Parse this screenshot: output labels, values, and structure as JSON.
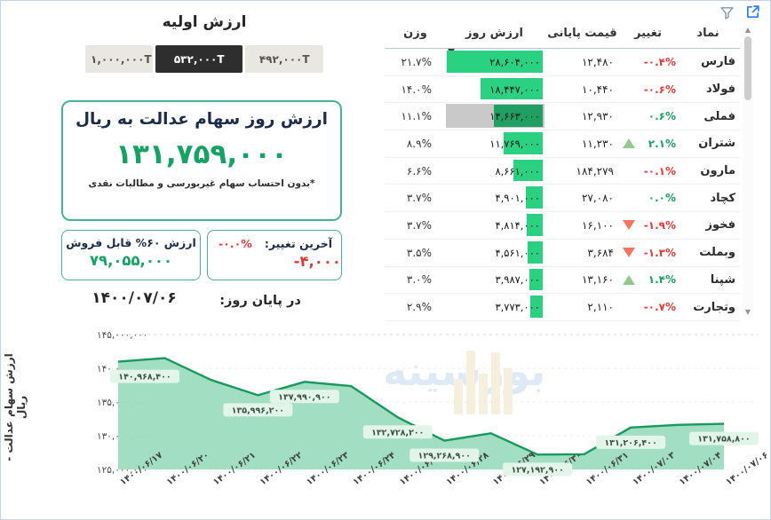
{
  "toolbar": {
    "filter_icon": "funnel",
    "expand_icon": "open-in-new"
  },
  "colors": {
    "accent_green": "#16a263",
    "bar_green": "#2ad180",
    "bar_green_dark": "#1f9f62",
    "highlight_gray": "#c9c9c9",
    "negative_red": "#e23b3b",
    "positive_green": "#1ca05c",
    "box_border_teal": "#49b197",
    "selected_button_bg": "#2e2e2e",
    "area_fill": "#9cdcbf",
    "area_line": "#18995d"
  },
  "initial_value": {
    "title": "ارزش اولیه",
    "options": [
      {
        "label": "۱,۰۰۰,۰۰۰T"
      },
      {
        "label": "۵۳۲,۰۰۰T"
      },
      {
        "label": "۴۹۲,۰۰۰T"
      }
    ],
    "selected_index": 1
  },
  "main_value": {
    "title": "ارزش روز سهام عدالت به ریال",
    "value": "۱۳۱,۷۵۹,۰۰۰",
    "footnote": "*بدون احتساب سهام غیربورسی و مطالبات نقدی"
  },
  "sellable_value": {
    "title": "ارزش ۶۰% قابل فروش",
    "value": "۷۹,۰۵۵,۰۰۰"
  },
  "last_change": {
    "title": "آخرین تغییر:",
    "percent": "-۰.۰%",
    "value": "-۴,۰۰۰"
  },
  "day_end": {
    "label": "در پایان روز:",
    "date": "۱۴۰۰/۰۷/۰۶"
  },
  "table": {
    "headers": {
      "symbol": "نماد",
      "change": "تغییر",
      "close": "قیمت پایانی",
      "value": "ارزش روز",
      "weight": "وزن"
    },
    "sorted_column": "value",
    "max_value": 28604000,
    "rows": [
      {
        "symbol": "فارس",
        "change": "-۰.۴%",
        "arrow": "none",
        "close": "۱۲,۴۸۰",
        "value": "۲۸,۶۰۴,۰۰۰",
        "value_num": 28604000,
        "weight": "۲۱.۷%",
        "highlighted": false
      },
      {
        "symbol": "فولاد",
        "change": "-۰.۶%",
        "arrow": "none",
        "close": "۱۰,۴۴۰",
        "value": "۱۸,۴۴۷,۰۰۰",
        "value_num": 18447000,
        "weight": "۱۴.۰%",
        "highlighted": false
      },
      {
        "symbol": "فملی",
        "change": "۰.۶%",
        "arrow": "none",
        "close": "۱۲,۹۳۰",
        "value": "۱۴,۶۶۳,۰۰۰",
        "value_num": 14663000,
        "weight": "۱۱.۱%",
        "highlighted": true
      },
      {
        "symbol": "شتران",
        "change": "۲.۱%",
        "arrow": "up",
        "close": "۱۱,۲۳۰",
        "value": "۱۱,۷۶۹,۰۰۰",
        "value_num": 11769000,
        "weight": "۸.۹%",
        "highlighted": false
      },
      {
        "symbol": "مارون",
        "change": "-۰.۱%",
        "arrow": "none",
        "close": "۱۸۴,۲۷۹",
        "value": "۸,۶۶۱,۰۰۰",
        "value_num": 8661000,
        "weight": "۶.۶%",
        "highlighted": false
      },
      {
        "symbol": "کچاد",
        "change": "۰.۰%",
        "arrow": "none",
        "close": "۲۷,۰۸۰",
        "value": "۴,۹۰۱,۰۰۰",
        "value_num": 4901000,
        "weight": "۳.۷%",
        "highlighted": false
      },
      {
        "symbol": "فخوز",
        "change": "-۱.۹%",
        "arrow": "down",
        "close": "۱۶,۱۰۰",
        "value": "۴,۸۱۴,۰۰۰",
        "value_num": 4814000,
        "weight": "۳.۷%",
        "highlighted": false
      },
      {
        "symbol": "وبملت",
        "change": "-۱.۳%",
        "arrow": "down",
        "close": "۳,۶۸۴",
        "value": "۴,۵۶۱,۰۰۰",
        "value_num": 4561000,
        "weight": "۳.۵%",
        "highlighted": false
      },
      {
        "symbol": "شپنا",
        "change": "۱.۴%",
        "arrow": "up",
        "close": "۱۳,۱۶۰",
        "value": "۳,۹۸۷,۰۰۰",
        "value_num": 3987000,
        "weight": "۳.۰%",
        "highlighted": false
      },
      {
        "symbol": "وتجارت",
        "change": "-۰.۷%",
        "arrow": "none",
        "close": "۲,۱۱۰",
        "value": "۳,۷۷۳,۰۰۰",
        "value_num": 3773000,
        "weight": "۲.۹%",
        "highlighted": false
      }
    ]
  },
  "watermark": {
    "text": "بورسینه"
  },
  "chart_data": {
    "type": "area",
    "title": "",
    "xlabel": "",
    "ylabel": "ارزش سهام عدالت - ریال",
    "ylim": [
      125000000,
      145000000
    ],
    "grid": "dashed-horizontal",
    "legend": "none",
    "x": [
      "۱۴۰۰/۰۶/۱۷",
      "۱۴۰۰/۰۶/۲۰",
      "۱۴۰۰/۰۶/۲۱",
      "۱۴۰۰/۰۶/۲۲",
      "۱۴۰۰/۰۶/۲۳",
      "۱۴۰۰/۰۶/۲۴",
      "۱۴۰۰/۰۶/۲۷",
      "۱۴۰۰/۰۶/۲۸",
      "۱۴۰۰/۰۶/۲۹",
      "۱۴۰۰/۰۶/۳۰",
      "۱۴۰۰/۰۶/۳۱",
      "۱۴۰۰/۰۷/۰۳",
      "۱۴۰۰/۰۷/۰۴",
      "۱۴۰۰/۰۷/۰۶"
    ],
    "values": [
      140968400,
      141500000,
      138250000,
      135996200,
      137990900,
      137350000,
      132728200,
      129268900,
      130350000,
      127192900,
      127250000,
      131206400,
      131600000,
      131758800
    ],
    "point_labels": [
      {
        "index": 0,
        "text": "۱۴۰,۹۶۸,۴۰۰"
      },
      {
        "index": 3,
        "text": "۱۳۵,۹۹۶,۲۰۰"
      },
      {
        "index": 4,
        "text": "۱۳۷,۹۹۰,۹۰۰"
      },
      {
        "index": 6,
        "text": "۱۳۲,۷۲۸,۲۰۰"
      },
      {
        "index": 7,
        "text": "۱۲۹,۲۶۸,۹۰۰"
      },
      {
        "index": 9,
        "text": "۱۲۷,۱۹۲,۹۰۰"
      },
      {
        "index": 11,
        "text": "۱۳۱,۲۰۶,۴۰۰"
      },
      {
        "index": 13,
        "text": "۱۳۱,۷۵۸,۸۰۰"
      }
    ],
    "y_ticks": [
      {
        "value": 145000000,
        "label": "۱۴۵,۰۰۰,۰۰۰"
      },
      {
        "value": 140000000,
        "label": "۱۴۰,۰۰۰,۰۰۰"
      },
      {
        "value": 135000000,
        "label": "۱۳۵,۰۰۰,۰۰۰"
      },
      {
        "value": 130000000,
        "label": "۱۳۰,۰۰۰,۰۰۰"
      },
      {
        "value": 125000000,
        "label": "۱۲۵,۰۰۰,۰۰۰"
      }
    ]
  }
}
